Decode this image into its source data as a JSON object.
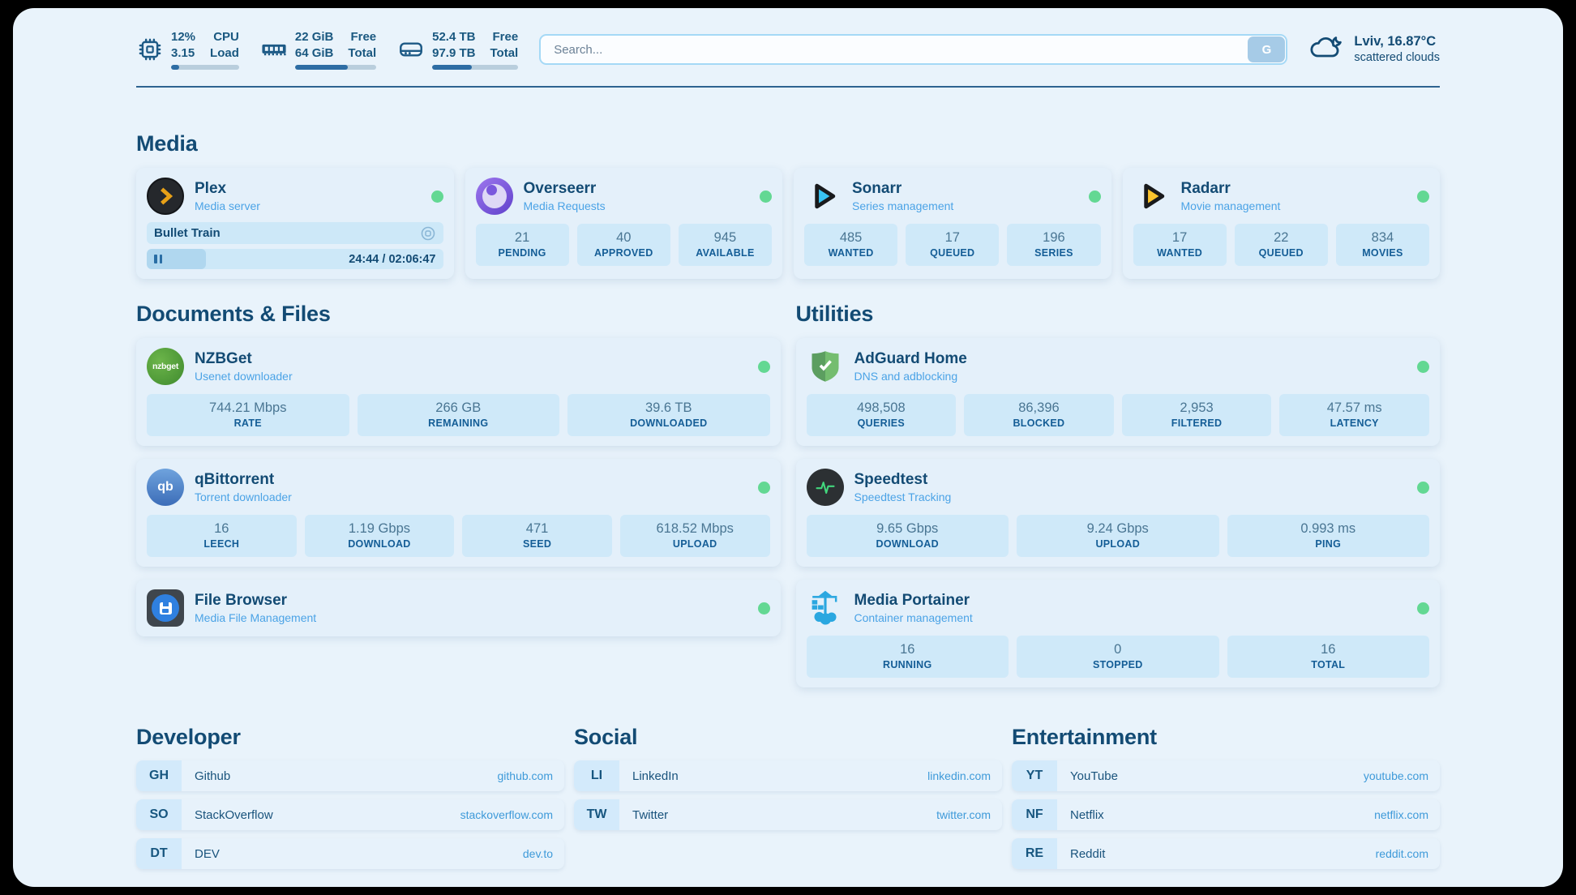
{
  "colors": {
    "page_background": "#e9f3fb",
    "card_background": "#e4f0fa",
    "tile_background": "#cfe9f9",
    "heading": "#134b74",
    "accent_link": "#3e9ad9",
    "status_online": "#63d893",
    "progress_fill": "#2e6da4"
  },
  "topbar": {
    "metrics": [
      {
        "icon": "cpu-icon",
        "value_top": "12%",
        "value_bottom": "3.15",
        "label_top": "CPU",
        "label_bottom": "Load",
        "progress_pct": 12
      },
      {
        "icon": "ram-icon",
        "value_top": "22 GiB",
        "value_bottom": "64 GiB",
        "label_top": "Free",
        "label_bottom": "Total",
        "progress_pct": 65
      },
      {
        "icon": "disk-icon",
        "value_top": "52.4 TB",
        "value_bottom": "97.9 TB",
        "label_top": "Free",
        "label_bottom": "Total",
        "progress_pct": 46
      }
    ],
    "search": {
      "placeholder": "Search...",
      "button_label": "G"
    },
    "weather": {
      "location_temp": "Lviv, 16.87°C",
      "condition": "scattered clouds"
    }
  },
  "media": {
    "title": "Media",
    "cards": [
      {
        "name": "Plex",
        "subtitle": "Media server",
        "status": "online",
        "player": {
          "track": "Bullet Train",
          "time": "24:44 / 02:06:47",
          "progress_pct": 20
        }
      },
      {
        "name": "Overseerr",
        "subtitle": "Media Requests",
        "status": "online",
        "stats": [
          {
            "value": "21",
            "label": "PENDING"
          },
          {
            "value": "40",
            "label": "APPROVED"
          },
          {
            "value": "945",
            "label": "AVAILABLE"
          }
        ]
      },
      {
        "name": "Sonarr",
        "subtitle": "Series management",
        "status": "online",
        "stats": [
          {
            "value": "485",
            "label": "WANTED"
          },
          {
            "value": "17",
            "label": "QUEUED"
          },
          {
            "value": "196",
            "label": "SERIES"
          }
        ]
      },
      {
        "name": "Radarr",
        "subtitle": "Movie management",
        "status": "online",
        "stats": [
          {
            "value": "17",
            "label": "WANTED"
          },
          {
            "value": "22",
            "label": "QUEUED"
          },
          {
            "value": "834",
            "label": "MOVIES"
          }
        ]
      }
    ]
  },
  "documents": {
    "title": "Documents & Files",
    "cards": [
      {
        "name": "NZBGet",
        "subtitle": "Usenet downloader",
        "status": "online",
        "icon_text": "nzbget",
        "stats": [
          {
            "value": "744.21 Mbps",
            "label": "RATE"
          },
          {
            "value": "266 GB",
            "label": "REMAINING"
          },
          {
            "value": "39.6 TB",
            "label": "DOWNLOADED"
          }
        ]
      },
      {
        "name": "qBittorrent",
        "subtitle": "Torrent downloader",
        "status": "online",
        "icon_text": "qb",
        "stats": [
          {
            "value": "16",
            "label": "LEECH"
          },
          {
            "value": "1.19 Gbps",
            "label": "DOWNLOAD"
          },
          {
            "value": "471",
            "label": "SEED"
          },
          {
            "value": "618.52 Mbps",
            "label": "UPLOAD"
          }
        ]
      },
      {
        "name": "File Browser",
        "subtitle": "Media File Management",
        "status": "online"
      }
    ]
  },
  "utilities": {
    "title": "Utilities",
    "cards": [
      {
        "name": "AdGuard Home",
        "subtitle": "DNS and adblocking",
        "status": "online",
        "stats": [
          {
            "value": "498,508",
            "label": "QUERIES"
          },
          {
            "value": "86,396",
            "label": "BLOCKED"
          },
          {
            "value": "2,953",
            "label": "FILTERED"
          },
          {
            "value": "47.57 ms",
            "label": "LATENCY"
          }
        ]
      },
      {
        "name": "Speedtest",
        "subtitle": "Speedtest Tracking",
        "status": "online",
        "stats": [
          {
            "value": "9.65 Gbps",
            "label": "DOWNLOAD"
          },
          {
            "value": "9.24 Gbps",
            "label": "UPLOAD"
          },
          {
            "value": "0.993 ms",
            "label": "PING"
          }
        ]
      },
      {
        "name": "Media Portainer",
        "subtitle": "Container management",
        "status": "online",
        "stats": [
          {
            "value": "16",
            "label": "RUNNING"
          },
          {
            "value": "0",
            "label": "STOPPED"
          },
          {
            "value": "16",
            "label": "TOTAL"
          }
        ]
      }
    ]
  },
  "bookmarks": [
    {
      "title": "Developer",
      "items": [
        {
          "abbr": "GH",
          "name": "Github",
          "url": "github.com"
        },
        {
          "abbr": "SO",
          "name": "StackOverflow",
          "url": "stackoverflow.com"
        },
        {
          "abbr": "DT",
          "name": "DEV",
          "url": "dev.to"
        }
      ]
    },
    {
      "title": "Social",
      "items": [
        {
          "abbr": "LI",
          "name": "LinkedIn",
          "url": "linkedin.com"
        },
        {
          "abbr": "TW",
          "name": "Twitter",
          "url": "twitter.com"
        }
      ]
    },
    {
      "title": "Entertainment",
      "items": [
        {
          "abbr": "YT",
          "name": "YouTube",
          "url": "youtube.com"
        },
        {
          "abbr": "NF",
          "name": "Netflix",
          "url": "netflix.com"
        },
        {
          "abbr": "RE",
          "name": "Reddit",
          "url": "reddit.com"
        }
      ]
    }
  ]
}
